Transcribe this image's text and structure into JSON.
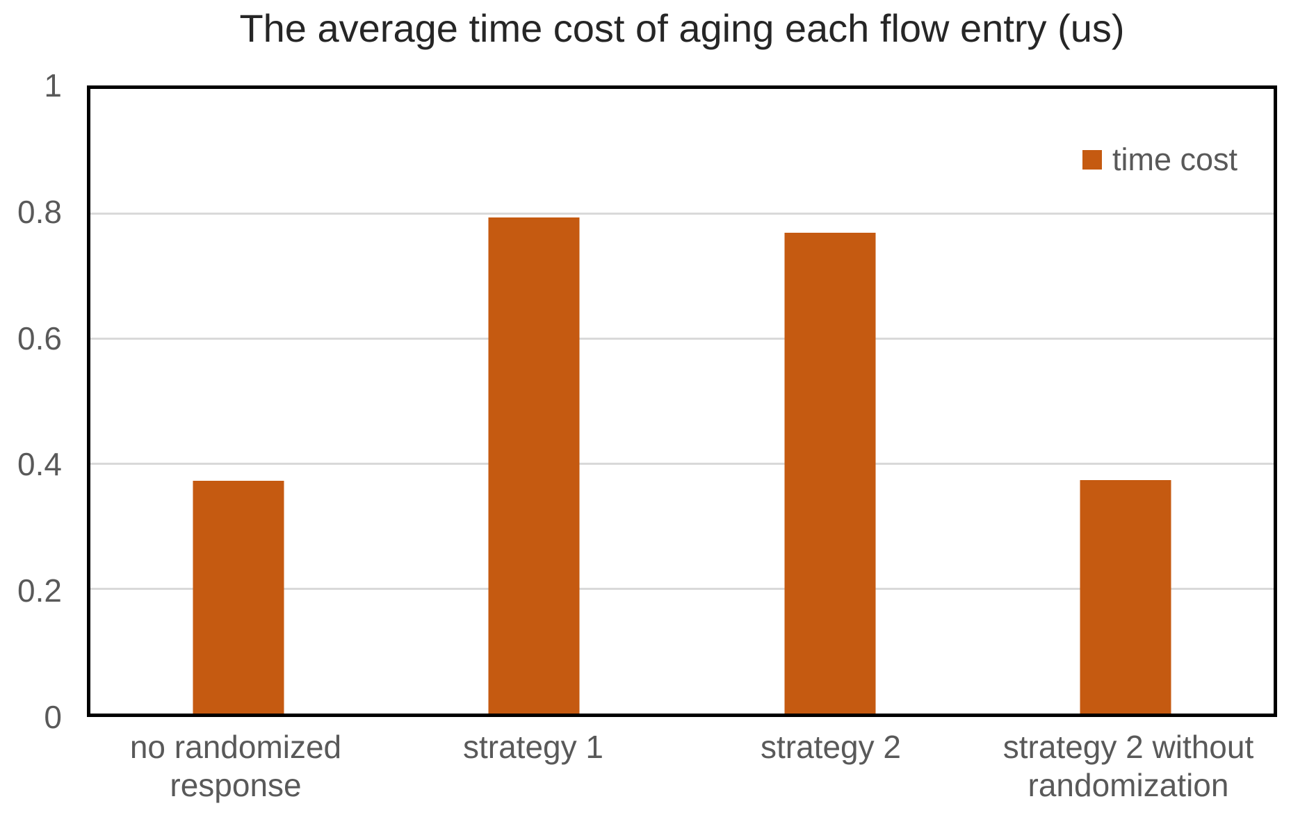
{
  "legend": {
    "label": "time cost",
    "swatch_icon": "filled-square",
    "position": "top-right-inside-plot"
  },
  "colors": {
    "bar": "#C55A11",
    "grid": "#D9D9D9",
    "axis_text": "#595959",
    "title_text": "#262626",
    "plot_border": "#000000",
    "background": "#FFFFFF"
  },
  "chart_data": {
    "type": "bar",
    "title": "The average time cost of aging each flow entry (us)",
    "categories": [
      "no randomized response",
      "strategy 1",
      "strategy 2",
      "strategy 2 without randomization"
    ],
    "category_display_lines": [
      [
        "no randomized",
        "response"
      ],
      [
        "strategy 1"
      ],
      [
        "strategy 2"
      ],
      [
        "strategy 2 without",
        "randomization"
      ]
    ],
    "series": [
      {
        "name": "time cost",
        "values": [
          0.373,
          0.794,
          0.77,
          0.374
        ]
      }
    ],
    "xlabel": "",
    "ylabel": "",
    "ylim": [
      0,
      1
    ],
    "yticks": [
      0,
      0.2,
      0.4,
      0.6,
      0.8,
      1
    ],
    "ytick_labels": [
      "0",
      "0.2",
      "0.4",
      "0.6",
      "0.8",
      "1"
    ],
    "grid": true,
    "legend_position": "top-right"
  }
}
